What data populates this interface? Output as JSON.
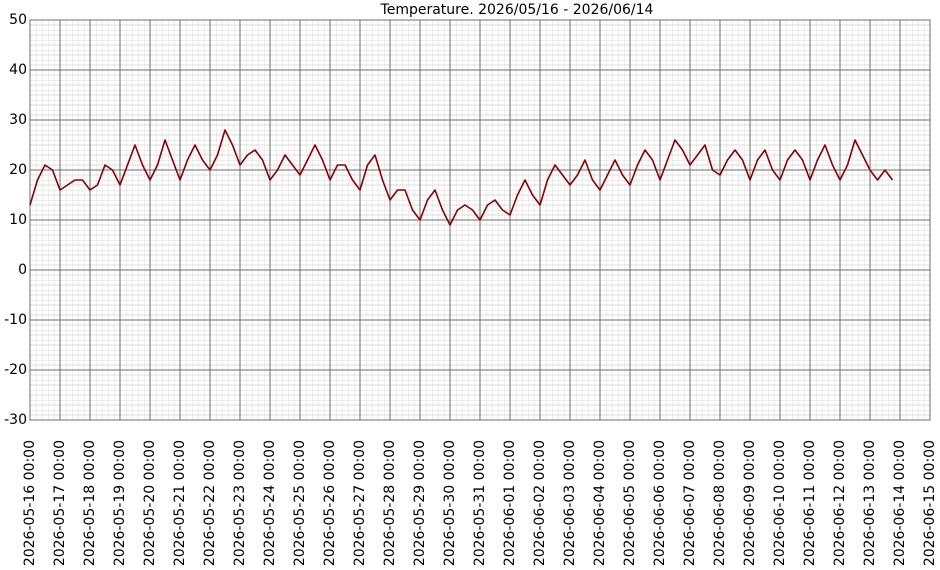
{
  "chart_data": {
    "type": "line",
    "title": "Temperature. 2026/05/16 - 2026/06/14",
    "x": [
      "2026-05-16 00:00",
      "2026-05-16 06:00",
      "2026-05-16 12:00",
      "2026-05-16 18:00",
      "2026-05-17 00:00",
      "2026-05-17 06:00",
      "2026-05-17 12:00",
      "2026-05-17 18:00",
      "2026-05-18 00:00",
      "2026-05-18 06:00",
      "2026-05-18 12:00",
      "2026-05-18 18:00",
      "2026-05-19 00:00",
      "2026-05-19 06:00",
      "2026-05-19 12:00",
      "2026-05-19 18:00",
      "2026-05-20 00:00",
      "2026-05-20 06:00",
      "2026-05-20 12:00",
      "2026-05-20 18:00",
      "2026-05-21 00:00",
      "2026-05-21 06:00",
      "2026-05-21 12:00",
      "2026-05-21 18:00",
      "2026-05-22 00:00",
      "2026-05-22 06:00",
      "2026-05-22 12:00",
      "2026-05-22 18:00",
      "2026-05-23 00:00",
      "2026-05-23 06:00",
      "2026-05-23 12:00",
      "2026-05-23 18:00",
      "2026-05-24 00:00",
      "2026-05-24 06:00",
      "2026-05-24 12:00",
      "2026-05-24 18:00",
      "2026-05-25 00:00",
      "2026-05-25 06:00",
      "2026-05-25 12:00",
      "2026-05-25 18:00",
      "2026-05-26 00:00",
      "2026-05-26 06:00",
      "2026-05-26 12:00",
      "2026-05-26 18:00",
      "2026-05-27 00:00",
      "2026-05-27 06:00",
      "2026-05-27 12:00",
      "2026-05-27 18:00",
      "2026-05-28 00:00",
      "2026-05-28 06:00",
      "2026-05-28 12:00",
      "2026-05-28 18:00",
      "2026-05-29 00:00",
      "2026-05-29 06:00",
      "2026-05-29 12:00",
      "2026-05-29 18:00",
      "2026-05-30 00:00",
      "2026-05-30 06:00",
      "2026-05-30 12:00",
      "2026-05-30 18:00",
      "2026-05-31 00:00",
      "2026-05-31 06:00",
      "2026-05-31 12:00",
      "2026-05-31 18:00",
      "2026-06-01 00:00",
      "2026-06-01 06:00",
      "2026-06-01 12:00",
      "2026-06-01 18:00",
      "2026-06-02 00:00",
      "2026-06-02 06:00",
      "2026-06-02 12:00",
      "2026-06-02 18:00",
      "2026-06-03 00:00",
      "2026-06-03 06:00",
      "2026-06-03 12:00",
      "2026-06-03 18:00",
      "2026-06-04 00:00",
      "2026-06-04 06:00",
      "2026-06-04 12:00",
      "2026-06-04 18:00",
      "2026-06-05 00:00",
      "2026-06-05 06:00",
      "2026-06-05 12:00",
      "2026-06-05 18:00",
      "2026-06-06 00:00",
      "2026-06-06 06:00",
      "2026-06-06 12:00",
      "2026-06-06 18:00",
      "2026-06-07 00:00",
      "2026-06-07 06:00",
      "2026-06-07 12:00",
      "2026-06-07 18:00",
      "2026-06-08 00:00",
      "2026-06-08 06:00",
      "2026-06-08 12:00",
      "2026-06-08 18:00",
      "2026-06-09 00:00",
      "2026-06-09 06:00",
      "2026-06-09 12:00",
      "2026-06-09 18:00",
      "2026-06-10 00:00",
      "2026-06-10 06:00",
      "2026-06-10 12:00",
      "2026-06-10 18:00",
      "2026-06-11 00:00",
      "2026-06-11 06:00",
      "2026-06-11 12:00",
      "2026-06-11 18:00",
      "2026-06-12 00:00",
      "2026-06-12 06:00",
      "2026-06-12 12:00",
      "2026-06-12 18:00",
      "2026-06-13 00:00",
      "2026-06-13 06:00",
      "2026-06-13 12:00",
      "2026-06-13 18:00"
    ],
    "series": [
      {
        "name": "Temperature",
        "color": "#8b0000",
        "values": [
          13,
          18,
          21,
          20,
          16,
          17,
          18,
          18,
          16,
          17,
          21,
          20,
          17,
          21,
          25,
          21,
          18,
          21,
          26,
          22,
          18,
          22,
          25,
          22,
          20,
          23,
          28,
          25,
          21,
          23,
          24,
          22,
          18,
          20,
          23,
          21,
          19,
          22,
          25,
          22,
          18,
          21,
          21,
          18,
          16,
          21,
          23,
          18,
          14,
          16,
          16,
          12,
          10,
          14,
          16,
          12,
          9,
          12,
          13,
          12,
          10,
          13,
          14,
          12,
          11,
          15,
          18,
          15,
          13,
          18,
          21,
          19,
          17,
          19,
          22,
          18,
          16,
          19,
          22,
          19,
          17,
          21,
          24,
          22,
          18,
          22,
          26,
          24,
          21,
          23,
          25,
          20,
          19,
          22,
          24,
          22,
          18,
          22,
          24,
          20,
          18,
          22,
          24,
          22,
          18,
          22,
          25,
          21,
          18,
          21,
          26,
          23,
          20,
          18,
          20,
          18
        ]
      }
    ],
    "xlim": [
      "2026-05-16 00:00",
      "2026-06-15 00:00"
    ],
    "xticks": [
      "2026-05-16 00:00",
      "2026-05-17 00:00",
      "2026-05-18 00:00",
      "2026-05-19 00:00",
      "2026-05-20 00:00",
      "2026-05-21 00:00",
      "2026-05-22 00:00",
      "2026-05-23 00:00",
      "2026-05-24 00:00",
      "2026-05-25 00:00",
      "2026-05-26 00:00",
      "2026-05-27 00:00",
      "2026-05-28 00:00",
      "2026-05-29 00:00",
      "2026-05-30 00:00",
      "2026-05-31 00:00",
      "2026-06-01 00:00",
      "2026-06-02 00:00",
      "2026-06-03 00:00",
      "2026-06-04 00:00",
      "2026-06-05 00:00",
      "2026-06-06 00:00",
      "2026-06-07 00:00",
      "2026-06-08 00:00",
      "2026-06-09 00:00",
      "2026-06-10 00:00",
      "2026-06-11 00:00",
      "2026-06-12 00:00",
      "2026-06-13 00:00",
      "2026-06-14 00:00",
      "2026-06-15 00:00"
    ],
    "ylim": [
      -30,
      50
    ],
    "yticks": [
      -30,
      -20,
      -10,
      0,
      10,
      20,
      30,
      40,
      50
    ],
    "grid": true
  }
}
